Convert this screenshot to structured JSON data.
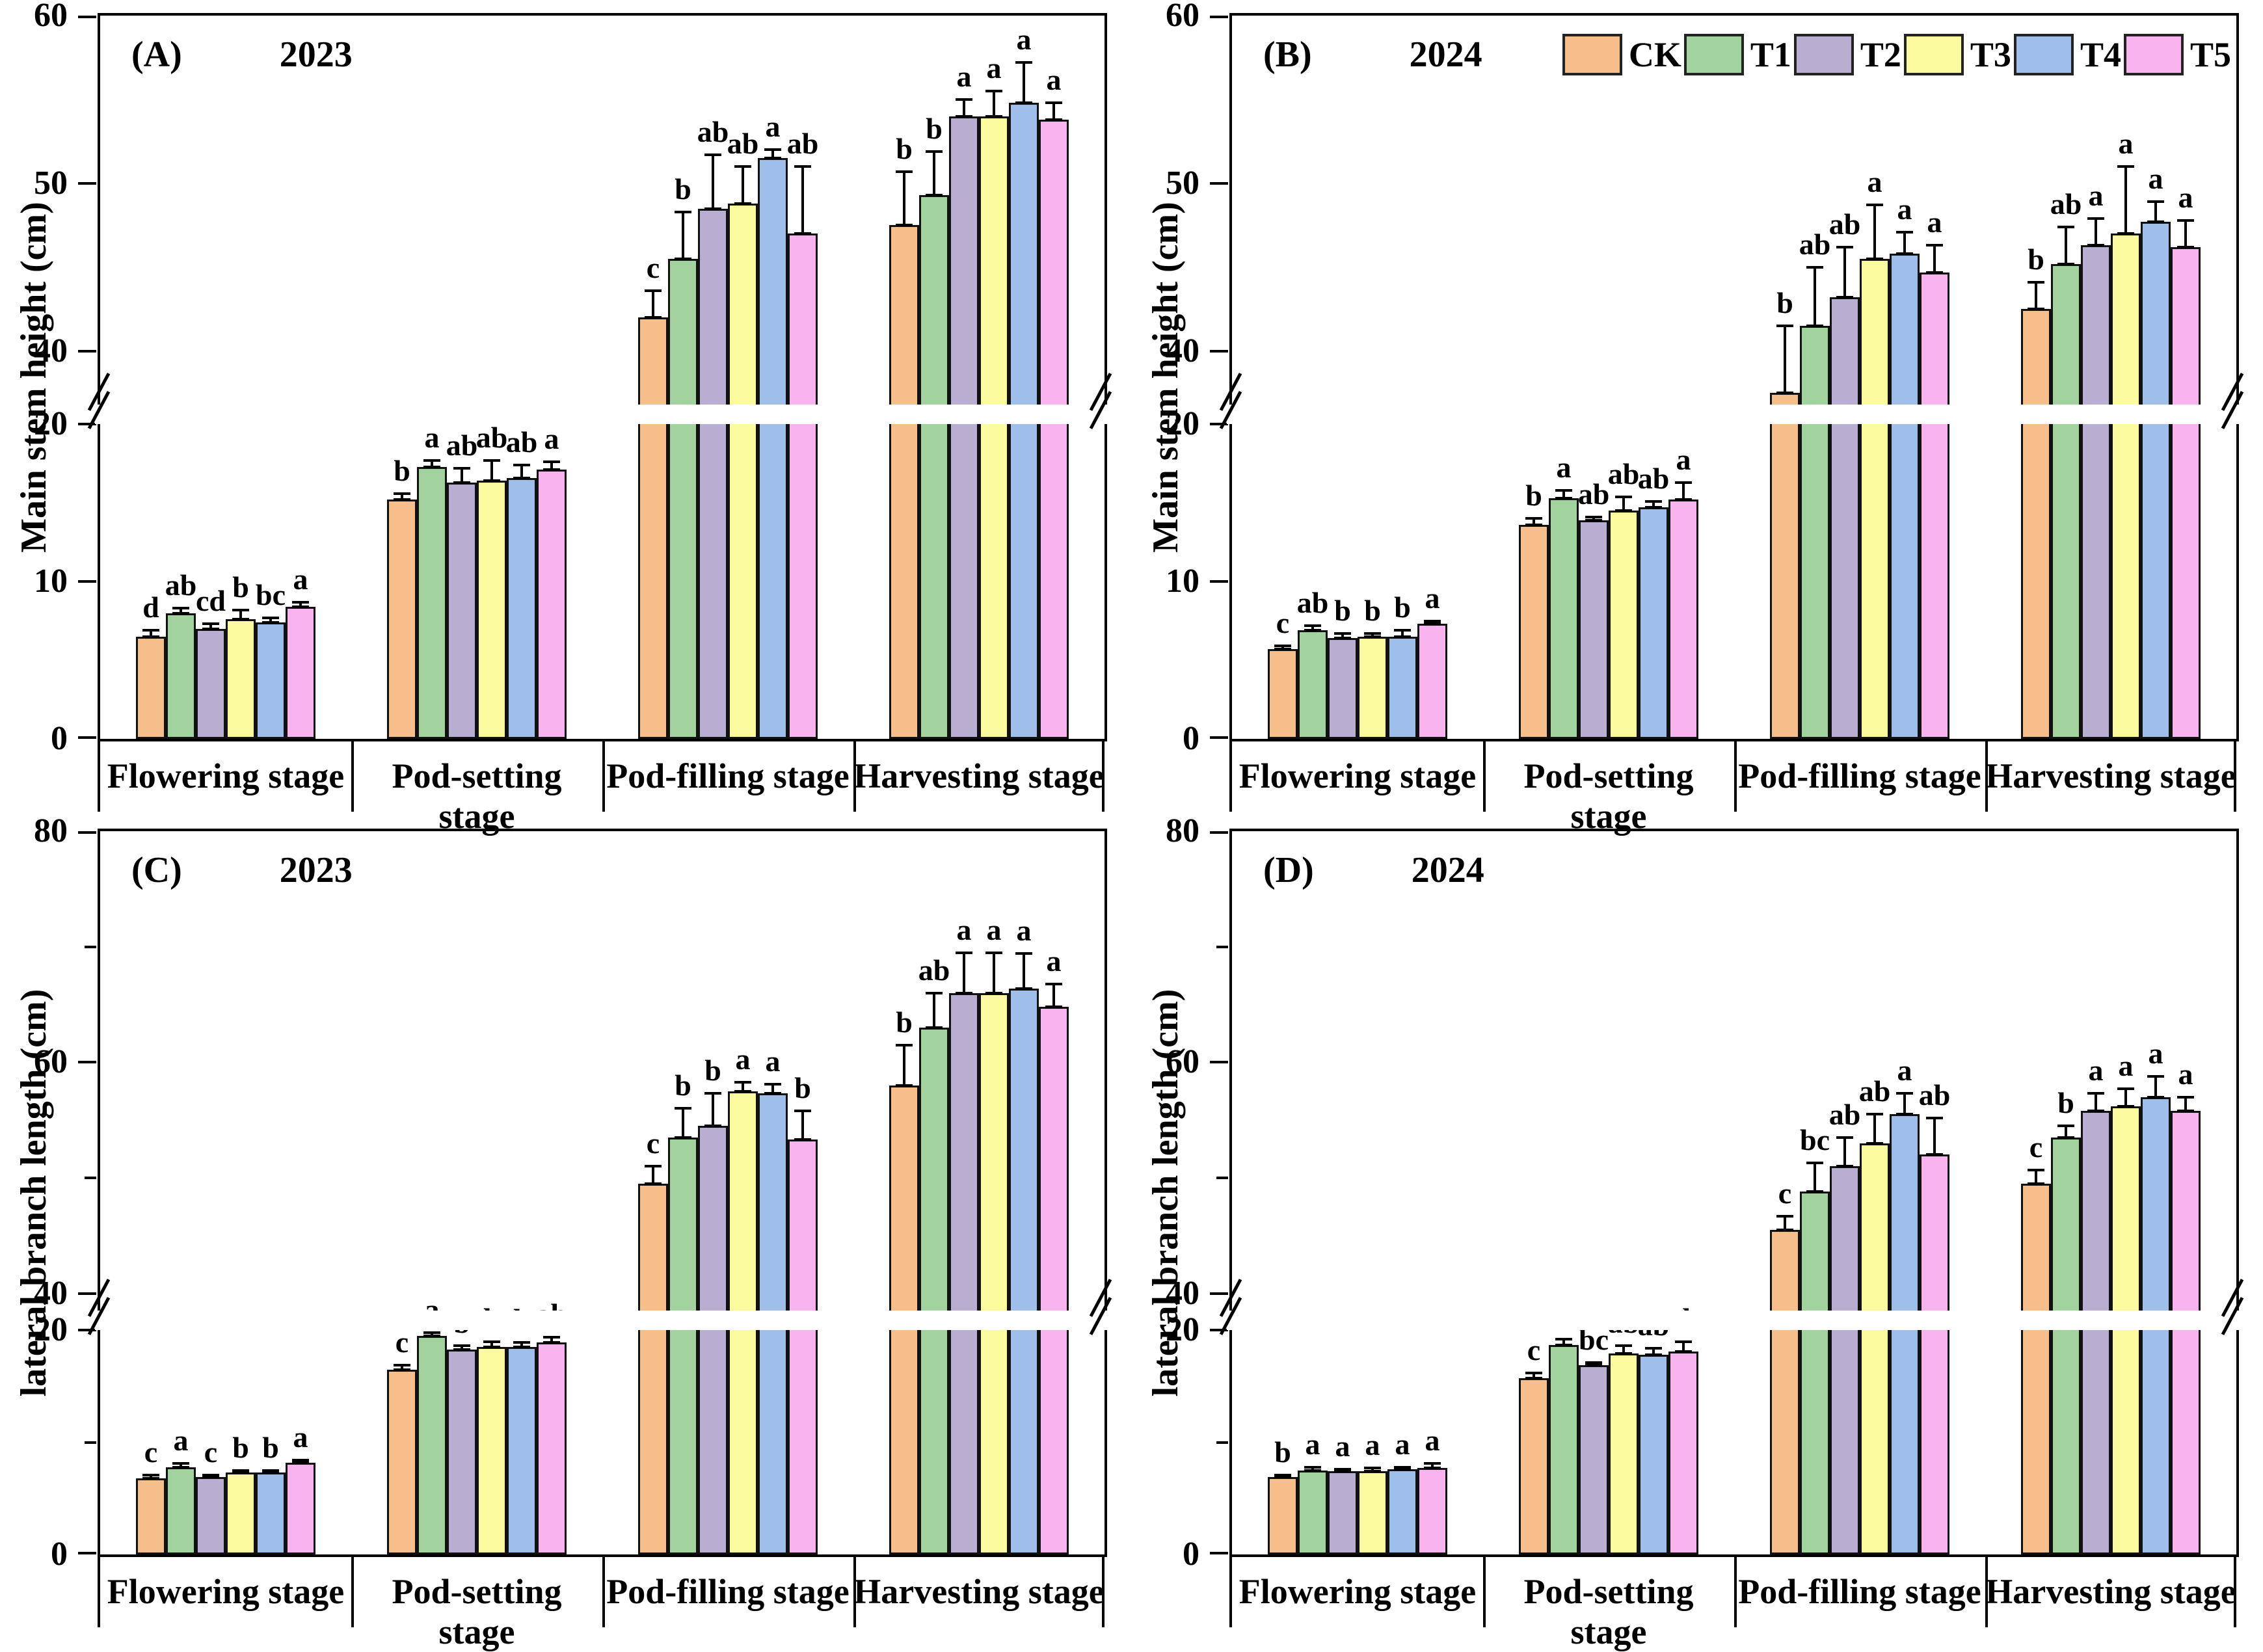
{
  "chart_data": {
    "type": "bar",
    "categories": [
      "Flowering stage",
      "Pod-setting stage",
      "Pod-filling stage",
      "Harvesting stage"
    ],
    "legend_position": "top-right of panel B",
    "treatments": [
      {
        "name": "CK",
        "color": "#F6BE8B"
      },
      {
        "name": "T1",
        "color": "#A2D39E"
      },
      {
        "name": "T2",
        "color": "#B9ADD2"
      },
      {
        "name": "T3",
        "color": "#FBFA9F"
      },
      {
        "name": "T4",
        "color": "#9FBEE9"
      },
      {
        "name": "T5",
        "color": "#F9B3EF"
      }
    ],
    "panels": [
      {
        "panel_label": "(A)",
        "year": "2023",
        "ylabel": "Main stem height (cm)",
        "show_legend": false,
        "grid": false,
        "axis": {
          "bottom_max": 20,
          "top_min": 36.8,
          "top_max": 60,
          "bottom_ticks": [
            0,
            10,
            20
          ],
          "top_ticks": [
            40,
            50,
            60
          ],
          "minor_bottom_ticks": [],
          "minor_top_ticks": [],
          "broken": true
        },
        "series": [
          {
            "name": "CK",
            "values": [
              6.5,
              15.2,
              42.0,
              47.5
            ],
            "errors": [
              0.4,
              0.4,
              1.6,
              3.2
            ],
            "letters": [
              "d",
              "b",
              "c",
              "b"
            ]
          },
          {
            "name": "T1",
            "values": [
              8.0,
              17.3,
              45.5,
              49.3
            ],
            "errors": [
              0.3,
              0.4,
              2.8,
              2.6
            ],
            "letters": [
              "ab",
              "a",
              "b",
              "b"
            ]
          },
          {
            "name": "T2",
            "values": [
              7.0,
              16.3,
              48.5,
              54.0
            ],
            "errors": [
              0.3,
              0.9,
              3.2,
              1.0
            ],
            "letters": [
              "cd",
              "ab",
              "ab",
              "a"
            ]
          },
          {
            "name": "T3",
            "values": [
              7.6,
              16.4,
              48.8,
              54.0
            ],
            "errors": [
              0.6,
              1.3,
              2.2,
              1.5
            ],
            "letters": [
              "b",
              "ab",
              "ab",
              "a"
            ]
          },
          {
            "name": "T4",
            "values": [
              7.4,
              16.6,
              51.5,
              54.8
            ],
            "errors": [
              0.3,
              0.8,
              0.5,
              2.4
            ],
            "letters": [
              "bc",
              "ab",
              "a",
              "a"
            ]
          },
          {
            "name": "T5",
            "values": [
              8.4,
              17.1,
              47.0,
              53.8
            ],
            "errors": [
              0.3,
              0.5,
              4.0,
              1.0
            ],
            "letters": [
              "a",
              "a",
              "ab",
              "a"
            ]
          }
        ]
      },
      {
        "panel_label": "(B)",
        "year": "2024",
        "ylabel": "Main stem height (cm)",
        "show_legend": true,
        "grid": false,
        "axis": {
          "bottom_max": 20,
          "top_min": 36.8,
          "top_max": 60,
          "bottom_ticks": [
            0,
            10,
            20
          ],
          "top_ticks": [
            40,
            50,
            60
          ],
          "minor_bottom_ticks": [],
          "minor_top_ticks": [],
          "broken": true
        },
        "series": [
          {
            "name": "CK",
            "values": [
              5.7,
              13.6,
              37.5,
              42.5
            ],
            "errors": [
              0.2,
              0.4,
              4.0,
              1.6
            ],
            "letters": [
              "c",
              "b",
              "b",
              "b"
            ]
          },
          {
            "name": "T1",
            "values": [
              6.9,
              15.3,
              41.5,
              45.2
            ],
            "errors": [
              0.3,
              0.5,
              3.5,
              2.2
            ],
            "letters": [
              "ab",
              "a",
              "ab",
              "ab"
            ]
          },
          {
            "name": "T2",
            "values": [
              6.4,
              13.9,
              43.2,
              46.3
            ],
            "errors": [
              0.3,
              0.2,
              3.0,
              1.6
            ],
            "letters": [
              "b",
              "ab",
              "ab",
              "a"
            ]
          },
          {
            "name": "T3",
            "values": [
              6.5,
              14.5,
              45.5,
              47.0
            ],
            "errors": [
              0.2,
              0.9,
              3.2,
              4.0
            ],
            "letters": [
              "b",
              "ab",
              "a",
              "a"
            ]
          },
          {
            "name": "T4",
            "values": [
              6.5,
              14.7,
              45.8,
              47.7
            ],
            "errors": [
              0.4,
              0.4,
              1.3,
              1.2
            ],
            "letters": [
              "b",
              "ab",
              "a",
              "a"
            ]
          },
          {
            "name": "T5",
            "values": [
              7.3,
              15.2,
              44.7,
              46.2
            ],
            "errors": [
              0.2,
              1.1,
              1.6,
              1.6
            ],
            "letters": [
              "a",
              "a",
              "a",
              "a"
            ]
          }
        ]
      },
      {
        "panel_label": "(C)",
        "year": "2023",
        "ylabel": "lateral branch length (cm)",
        "show_legend": false,
        "grid": false,
        "axis": {
          "bottom_max": 20,
          "top_min": 38.5,
          "top_max": 80,
          "bottom_ticks": [
            0,
            20
          ],
          "top_ticks": [
            40,
            60,
            80
          ],
          "minor_bottom_ticks": [
            10
          ],
          "minor_top_ticks": [
            50,
            70
          ],
          "broken": true
        },
        "series": [
          {
            "name": "CK",
            "values": [
              6.8,
              16.5,
              49.5,
              58.0
            ],
            "errors": [
              0.3,
              0.4,
              1.5,
              3.5
            ],
            "letters": [
              "c",
              "c",
              "c",
              "b"
            ]
          },
          {
            "name": "T1",
            "values": [
              7.8,
              19.5,
              53.5,
              63.0
            ],
            "errors": [
              0.3,
              0.3,
              2.5,
              3.0
            ],
            "letters": [
              "a",
              "a",
              "b",
              "ab"
            ]
          },
          {
            "name": "T2",
            "values": [
              6.9,
              18.3,
              54.5,
              66.0
            ],
            "errors": [
              0.2,
              0.3,
              2.8,
              3.5
            ],
            "letters": [
              "c",
              "b",
              "b",
              "a"
            ]
          },
          {
            "name": "T3",
            "values": [
              7.3,
              18.5,
              57.5,
              66.0
            ],
            "errors": [
              0.2,
              0.5,
              0.8,
              3.5
            ],
            "letters": [
              "b",
              "b",
              "a",
              "a"
            ]
          },
          {
            "name": "T4",
            "values": [
              7.3,
              18.5,
              57.3,
              66.4
            ],
            "errors": [
              0.2,
              0.4,
              0.8,
              3.0
            ],
            "letters": [
              "b",
              "b",
              "a",
              "a"
            ]
          },
          {
            "name": "T5",
            "values": [
              8.2,
              18.9,
              53.3,
              64.8
            ],
            "errors": [
              0.2,
              0.5,
              2.5,
              2.0
            ],
            "letters": [
              "a",
              "ab",
              "b",
              "a"
            ]
          }
        ]
      },
      {
        "panel_label": "(D)",
        "year": "2024",
        "ylabel": "lateral branch length (cm)",
        "show_legend": false,
        "grid": false,
        "axis": {
          "bottom_max": 20,
          "top_min": 38.5,
          "top_max": 80,
          "bottom_ticks": [
            0,
            20
          ],
          "top_ticks": [
            40,
            60,
            80
          ],
          "minor_bottom_ticks": [
            10
          ],
          "minor_top_ticks": [
            50,
            70
          ],
          "broken": true
        },
        "series": [
          {
            "name": "CK",
            "values": [
              6.9,
              15.7,
              45.5,
              49.5
            ],
            "errors": [
              0.2,
              0.5,
              1.2,
              1.2
            ],
            "letters": [
              "b",
              "c",
              "c",
              "c"
            ]
          },
          {
            "name": "T1",
            "values": [
              7.5,
              18.7,
              48.8,
              53.5
            ],
            "errors": [
              0.3,
              0.5,
              2.5,
              1.0
            ],
            "letters": [
              "a",
              "a",
              "bc",
              "b"
            ]
          },
          {
            "name": "T2",
            "values": [
              7.4,
              16.9,
              51.0,
              55.8
            ],
            "errors": [
              0.2,
              0.2,
              2.5,
              1.5
            ],
            "letters": [
              "a",
              "bc",
              "ab",
              "a"
            ]
          },
          {
            "name": "T3",
            "values": [
              7.4,
              17.9,
              53.0,
              56.2
            ],
            "errors": [
              0.3,
              0.7,
              2.5,
              1.5
            ],
            "letters": [
              "a",
              "ab",
              "ab",
              "a"
            ]
          },
          {
            "name": "T4",
            "values": [
              7.6,
              17.8,
              55.5,
              57.0
            ],
            "errors": [
              0.2,
              0.6,
              1.8,
              1.8
            ],
            "letters": [
              "a",
              "ab",
              "a",
              "a"
            ]
          },
          {
            "name": "T5",
            "values": [
              7.7,
              18.1,
              52.0,
              55.8
            ],
            "errors": [
              0.4,
              0.9,
              3.2,
              1.2
            ],
            "letters": [
              "a",
              "ab",
              "ab",
              "a"
            ]
          }
        ]
      }
    ]
  }
}
